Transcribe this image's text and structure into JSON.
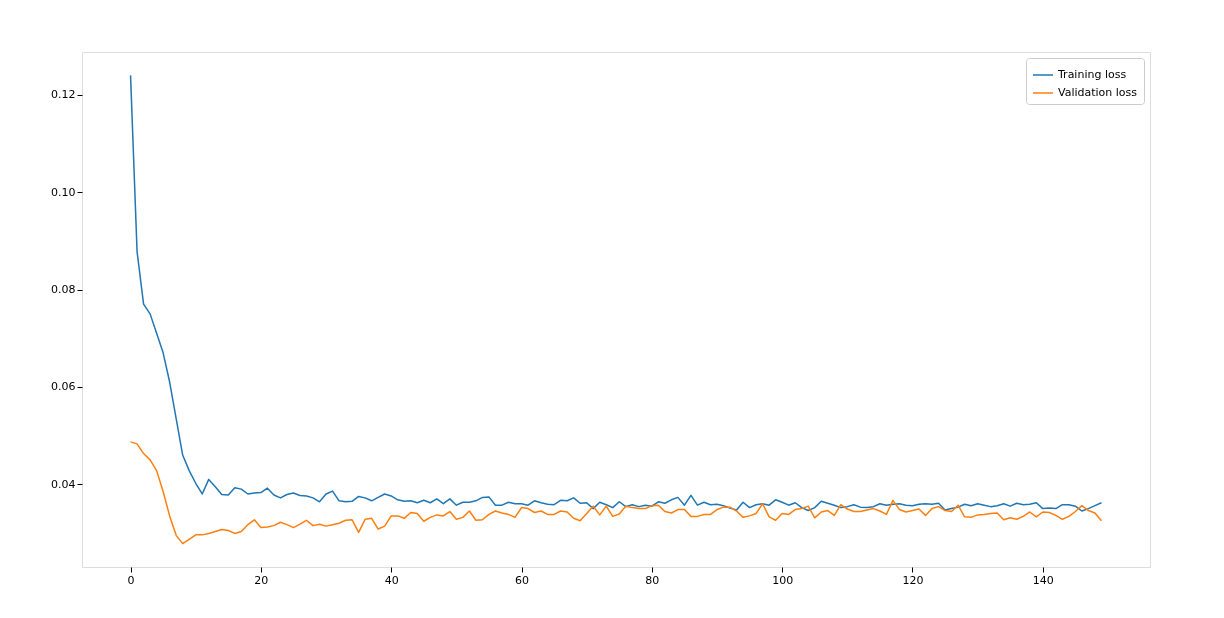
{
  "chart_data": {
    "type": "line",
    "x": [
      0,
      1,
      2,
      3,
      4,
      5,
      6,
      7,
      8,
      9,
      10,
      11,
      12,
      13,
      14,
      15,
      16,
      17,
      18,
      19,
      20,
      21,
      22,
      23,
      24,
      25,
      26,
      27,
      28,
      29,
      30,
      31,
      32,
      33,
      34,
      35,
      36,
      37,
      38,
      39,
      40,
      41,
      42,
      43,
      44,
      45,
      46,
      47,
      48,
      49,
      50,
      51,
      52,
      53,
      54,
      55,
      56,
      57,
      58,
      59,
      60,
      61,
      62,
      63,
      64,
      65,
      66,
      67,
      68,
      69,
      70,
      71,
      72,
      73,
      74,
      75,
      76,
      77,
      78,
      79,
      80,
      81,
      82,
      83,
      84,
      85,
      86,
      87,
      88,
      89,
      90,
      91,
      92,
      93,
      94,
      95,
      96,
      97,
      98,
      99,
      100,
      101,
      102,
      103,
      104,
      105,
      106,
      107,
      108,
      109,
      110,
      111,
      112,
      113,
      114,
      115,
      116,
      117,
      118,
      119,
      120,
      121,
      122,
      123,
      124,
      125,
      126,
      127,
      128,
      129,
      130,
      131,
      132,
      133,
      134,
      135,
      136,
      137,
      138,
      139,
      140,
      141,
      142,
      143,
      144,
      145,
      146,
      147,
      148,
      149
    ],
    "xlim": [
      -7.45,
      156.45
    ],
    "ylim": [
      0.023,
      0.1288
    ],
    "xticks": [
      0,
      20,
      40,
      60,
      80,
      100,
      120,
      140
    ],
    "yticks": [
      {
        "value": 0.04,
        "label": "0.04"
      },
      {
        "value": 0.06,
        "label": "0.06"
      },
      {
        "value": 0.08,
        "label": "0.08"
      },
      {
        "value": 0.1,
        "label": "0.10"
      },
      {
        "value": 0.12,
        "label": "0.12"
      }
    ],
    "grid": false,
    "legend": "top right",
    "marker": "none",
    "line_style": "solid",
    "series": [
      {
        "name": "Training loss",
        "color": "#1f77b4",
        "values": [
          0.124,
          0.0878,
          0.077,
          0.075,
          0.071,
          0.067,
          0.061,
          0.0535,
          0.046,
          0.0428,
          0.0402,
          0.038,
          0.041,
          0.0395,
          0.0379,
          0.0378,
          0.0393,
          0.039,
          0.038,
          0.0382,
          0.0383,
          0.0392,
          0.0378,
          0.0372,
          0.0379,
          0.0382,
          0.0377,
          0.0376,
          0.0372,
          0.0364,
          0.038,
          0.0386,
          0.0366,
          0.0364,
          0.0365,
          0.0375,
          0.0372,
          0.0366,
          0.0373,
          0.038,
          0.0376,
          0.0368,
          0.0365,
          0.0366,
          0.0362,
          0.0367,
          0.0362,
          0.037,
          0.036,
          0.037,
          0.0357,
          0.0363,
          0.0363,
          0.0366,
          0.0373,
          0.0374,
          0.0357,
          0.0357,
          0.0363,
          0.036,
          0.036,
          0.0357,
          0.0366,
          0.0362,
          0.0359,
          0.0358,
          0.0367,
          0.0366,
          0.0372,
          0.0361,
          0.0362,
          0.035,
          0.0363,
          0.0358,
          0.0352,
          0.0364,
          0.0354,
          0.0358,
          0.0354,
          0.0357,
          0.0355,
          0.0364,
          0.0361,
          0.0368,
          0.0373,
          0.0357,
          0.0377,
          0.0357,
          0.0363,
          0.0358,
          0.0359,
          0.0356,
          0.0351,
          0.0347,
          0.0363,
          0.0352,
          0.0358,
          0.036,
          0.0357,
          0.0368,
          0.0363,
          0.0357,
          0.0362,
          0.0352,
          0.0346,
          0.0352,
          0.0365,
          0.0361,
          0.0357,
          0.0352,
          0.0354,
          0.0358,
          0.0353,
          0.0352,
          0.0354,
          0.036,
          0.0357,
          0.0359,
          0.036,
          0.0357,
          0.0356,
          0.0359,
          0.036,
          0.0359,
          0.0361,
          0.0347,
          0.035,
          0.0353,
          0.0359,
          0.0356,
          0.036,
          0.0357,
          0.0354,
          0.0356,
          0.036,
          0.0355,
          0.0361,
          0.0358,
          0.0359,
          0.0362,
          0.035,
          0.0351,
          0.035,
          0.0358,
          0.0358,
          0.0355,
          0.0345,
          0.035,
          0.0356,
          0.0362
        ]
      },
      {
        "name": "Validation loss",
        "color": "#ff7f0e",
        "values": [
          0.0487,
          0.0483,
          0.0463,
          0.045,
          0.0428,
          0.0385,
          0.0335,
          0.0295,
          0.0278,
          0.0287,
          0.0296,
          0.0296,
          0.0299,
          0.0303,
          0.0307,
          0.0305,
          0.0299,
          0.0303,
          0.0317,
          0.0327,
          0.0311,
          0.0312,
          0.0315,
          0.0322,
          0.0317,
          0.0311,
          0.0318,
          0.0326,
          0.0315,
          0.0318,
          0.0314,
          0.0317,
          0.032,
          0.0326,
          0.0327,
          0.0301,
          0.0328,
          0.033,
          0.0308,
          0.0314,
          0.0335,
          0.0335,
          0.033,
          0.0342,
          0.034,
          0.0324,
          0.0332,
          0.0337,
          0.0335,
          0.0344,
          0.0328,
          0.0332,
          0.0345,
          0.0326,
          0.0327,
          0.0338,
          0.0345,
          0.0341,
          0.0338,
          0.0332,
          0.0352,
          0.035,
          0.0342,
          0.0345,
          0.0338,
          0.0338,
          0.0345,
          0.0343,
          0.033,
          0.0325,
          0.034,
          0.0355,
          0.0337,
          0.0355,
          0.0334,
          0.0339,
          0.0355,
          0.0352,
          0.035,
          0.035,
          0.0356,
          0.0357,
          0.0344,
          0.0341,
          0.0348,
          0.0348,
          0.0334,
          0.0334,
          0.0338,
          0.0338,
          0.0348,
          0.0353,
          0.0353,
          0.0345,
          0.0332,
          0.0335,
          0.034,
          0.036,
          0.0333,
          0.0326,
          0.034,
          0.0338,
          0.0348,
          0.035,
          0.0355,
          0.0331,
          0.0343,
          0.0346,
          0.0336,
          0.0358,
          0.0349,
          0.0344,
          0.0344,
          0.0347,
          0.035,
          0.0345,
          0.0338,
          0.0367,
          0.0348,
          0.0343,
          0.0346,
          0.0349,
          0.0336,
          0.035,
          0.0354,
          0.0346,
          0.0344,
          0.0357,
          0.0333,
          0.0332,
          0.0337,
          0.0338,
          0.034,
          0.0341,
          0.0327,
          0.0331,
          0.0328,
          0.0334,
          0.0343,
          0.0333,
          0.0343,
          0.0342,
          0.0336,
          0.0328,
          0.0334,
          0.0344,
          0.0356,
          0.0346,
          0.0341,
          0.0325
        ]
      }
    ]
  }
}
